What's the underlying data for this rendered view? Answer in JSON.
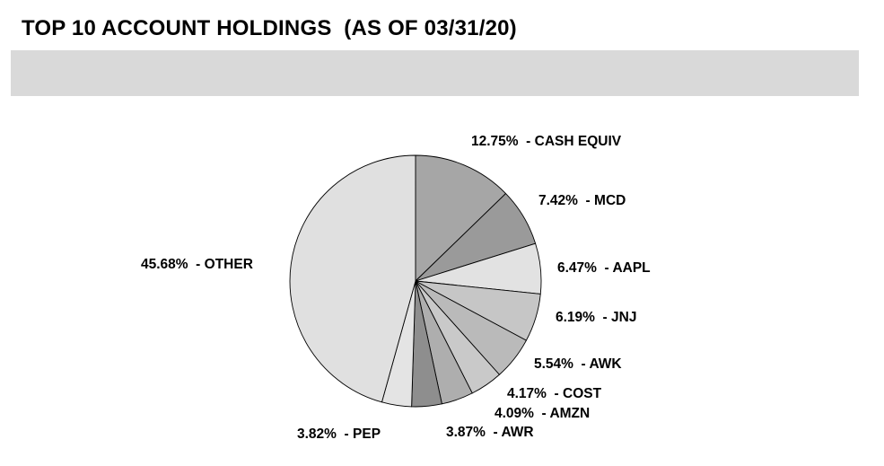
{
  "title": "TOP 10 ACCOUNT HOLDINGS  (AS OF 03/31/20)",
  "chart_data": {
    "type": "pie",
    "title": "",
    "start_angle_deg": 0,
    "direction": "clockwise",
    "slices": [
      {
        "label": "CASH EQUIV",
        "value": 12.75,
        "display": "12.75%  - CASH EQUIV",
        "color": "#a6a6a6"
      },
      {
        "label": "MCD",
        "value": 7.42,
        "display": "7.42%  - MCD",
        "color": "#9a9a9a"
      },
      {
        "label": "AAPL",
        "value": 6.47,
        "display": "6.47%  - AAPL",
        "color": "#e2e2e2"
      },
      {
        "label": "JNJ",
        "value": 6.19,
        "display": "6.19%  - JNJ",
        "color": "#c6c6c6"
      },
      {
        "label": "AWK",
        "value": 5.54,
        "display": "5.54%  - AWK",
        "color": "#bababa"
      },
      {
        "label": "COST",
        "value": 4.17,
        "display": "4.17%  - COST",
        "color": "#c9c9c9"
      },
      {
        "label": "AMZN",
        "value": 4.09,
        "display": "4.09%  - AMZN",
        "color": "#aeaeae"
      },
      {
        "label": "AWR",
        "value": 3.87,
        "display": "3.87%  - AWR",
        "color": "#8e8e8e"
      },
      {
        "label": "PEP",
        "value": 3.82,
        "display": "3.82%  - PEP",
        "color": "#e4e4e4"
      },
      {
        "label": "OTHER",
        "value": 45.68,
        "display": "45.68%  - OTHER",
        "color": "#e0e0e0"
      }
    ]
  }
}
